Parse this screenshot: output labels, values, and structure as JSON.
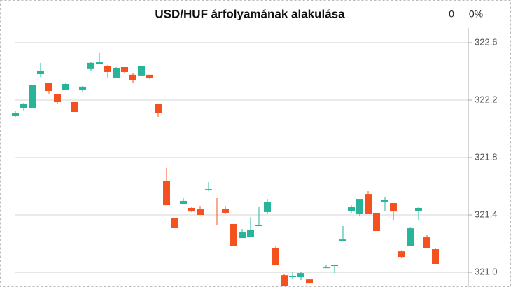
{
  "chart_data": {
    "type": "candlestick",
    "title": "USD/HUF árfolyamának alakulása",
    "change": "0",
    "change_pct": "0%",
    "categories": [
      null,
      null,
      null,
      null,
      null,
      null,
      null,
      null,
      null,
      null,
      null,
      null,
      null,
      null,
      null,
      null,
      null,
      null,
      null,
      null,
      null,
      null,
      null,
      null,
      null,
      null,
      null,
      null,
      null,
      null,
      null,
      null,
      null,
      null,
      null,
      null,
      null,
      null,
      null,
      null,
      null,
      null,
      null,
      null,
      null,
      null,
      null,
      null,
      null,
      null,
      null
    ],
    "open": [
      322.088,
      322.146,
      322.146,
      322.38,
      322.317,
      322.239,
      322.268,
      322.19,
      322.273,
      322.42,
      322.449,
      322.434,
      322.356,
      322.429,
      322.376,
      322.371,
      322.376,
      322.171,
      321.639,
      321.38,
      321.478,
      321.449,
      321.439,
      321.576,
      321.444,
      321.444,
      321.337,
      321.239,
      321.249,
      321.322,
      321.42,
      321.171,
      320.98,
      320.966,
      320.966,
      320.951,
      null,
      321.029,
      321.044,
      321.215,
      321.429,
      321.405,
      321.546,
      321.415,
      321.493,
      321.483,
      321.146,
      321.185,
      321.429,
      321.244,
      321.161
    ],
    "high": [
      322.122,
      322.18,
      322.307,
      322.459,
      322.317,
      322.239,
      322.322,
      322.19,
      322.298,
      322.463,
      322.527,
      322.444,
      322.429,
      322.429,
      322.385,
      322.434,
      322.376,
      322.171,
      321.727,
      321.38,
      321.517,
      321.454,
      321.463,
      321.629,
      321.517,
      321.463,
      321.337,
      321.302,
      321.385,
      321.454,
      321.512,
      321.18,
      320.99,
      321.0,
      321.005,
      320.951,
      null,
      321.054,
      321.054,
      321.322,
      321.468,
      321.512,
      321.566,
      321.415,
      321.527,
      321.483,
      321.156,
      321.317,
      321.459,
      321.259,
      321.166
    ],
    "low": [
      322.083,
      322.127,
      322.146,
      322.361,
      322.244,
      322.171,
      322.268,
      322.117,
      322.254,
      322.405,
      322.449,
      322.356,
      322.351,
      322.385,
      322.322,
      322.371,
      322.346,
      322.083,
      321.468,
      321.312,
      321.478,
      321.42,
      321.4,
      321.566,
      321.327,
      321.405,
      321.185,
      321.239,
      321.249,
      321.322,
      321.41,
      321.049,
      320.907,
      320.956,
      320.946,
      320.922,
      null,
      321.029,
      320.995,
      321.215,
      321.415,
      321.39,
      321.41,
      321.288,
      321.424,
      321.366,
      321.098,
      321.185,
      321.366,
      321.171,
      321.059
    ],
    "close": [
      322.112,
      322.171,
      322.307,
      322.405,
      322.263,
      322.185,
      322.312,
      322.117,
      322.293,
      322.459,
      322.463,
      322.395,
      322.424,
      322.395,
      322.337,
      322.434,
      322.351,
      322.112,
      321.468,
      321.312,
      321.498,
      321.424,
      321.4,
      321.58,
      321.439,
      321.415,
      321.185,
      321.278,
      321.298,
      321.332,
      321.488,
      321.049,
      320.907,
      320.976,
      320.995,
      320.922,
      null,
      321.034,
      321.054,
      321.229,
      321.454,
      321.512,
      321.41,
      321.288,
      321.507,
      321.424,
      321.107,
      321.307,
      321.449,
      321.171,
      321.059
    ],
    "up_color": "#26b598",
    "down_color": "#f4511e",
    "ylim": [
      320.898,
      322.702
    ],
    "yticks": [
      {
        "value": 321,
        "label": "321.0"
      },
      321.4,
      321.8,
      322.2,
      322.6
    ],
    "grid": true
  }
}
